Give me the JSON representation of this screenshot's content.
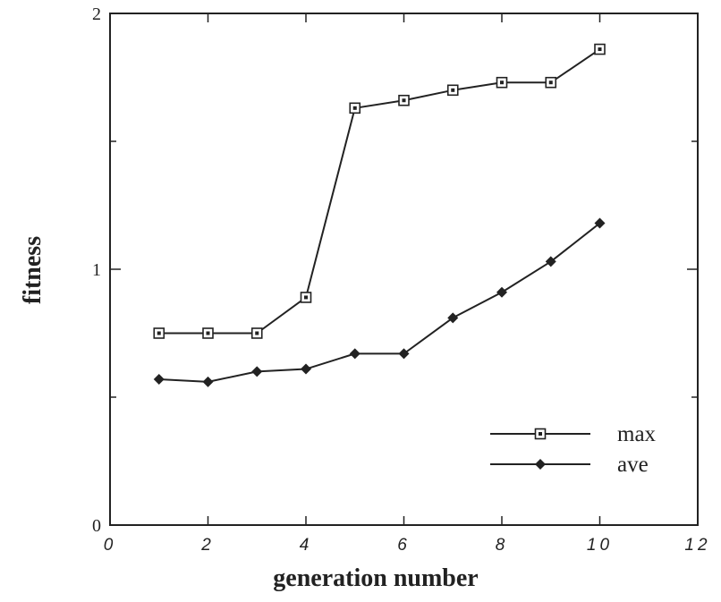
{
  "chart_data": {
    "type": "line",
    "xlabel": "generation number",
    "ylabel": "fitness",
    "xlim": [
      0,
      12
    ],
    "ylim": [
      0,
      2
    ],
    "xticks": [
      "0",
      "2",
      "4",
      "6",
      "8",
      "10",
      "12"
    ],
    "yticks": [
      "0",
      "1",
      "2"
    ],
    "x": [
      1,
      2,
      3,
      4,
      5,
      6,
      7,
      8,
      9,
      10
    ],
    "series": [
      {
        "name": "max",
        "marker": "square-open",
        "values": [
          0.75,
          0.75,
          0.75,
          0.89,
          1.63,
          1.66,
          1.7,
          1.73,
          1.73,
          1.86
        ]
      },
      {
        "name": "ave",
        "marker": "diamond-filled",
        "values": [
          0.57,
          0.56,
          0.6,
          0.61,
          0.67,
          0.67,
          0.81,
          0.91,
          1.03,
          1.18
        ]
      }
    ],
    "legend": {
      "placement": "bottom-right"
    },
    "grid": false,
    "colors": {
      "line": "#222222",
      "marker_fill": "#222222",
      "frame": "#222222"
    }
  }
}
